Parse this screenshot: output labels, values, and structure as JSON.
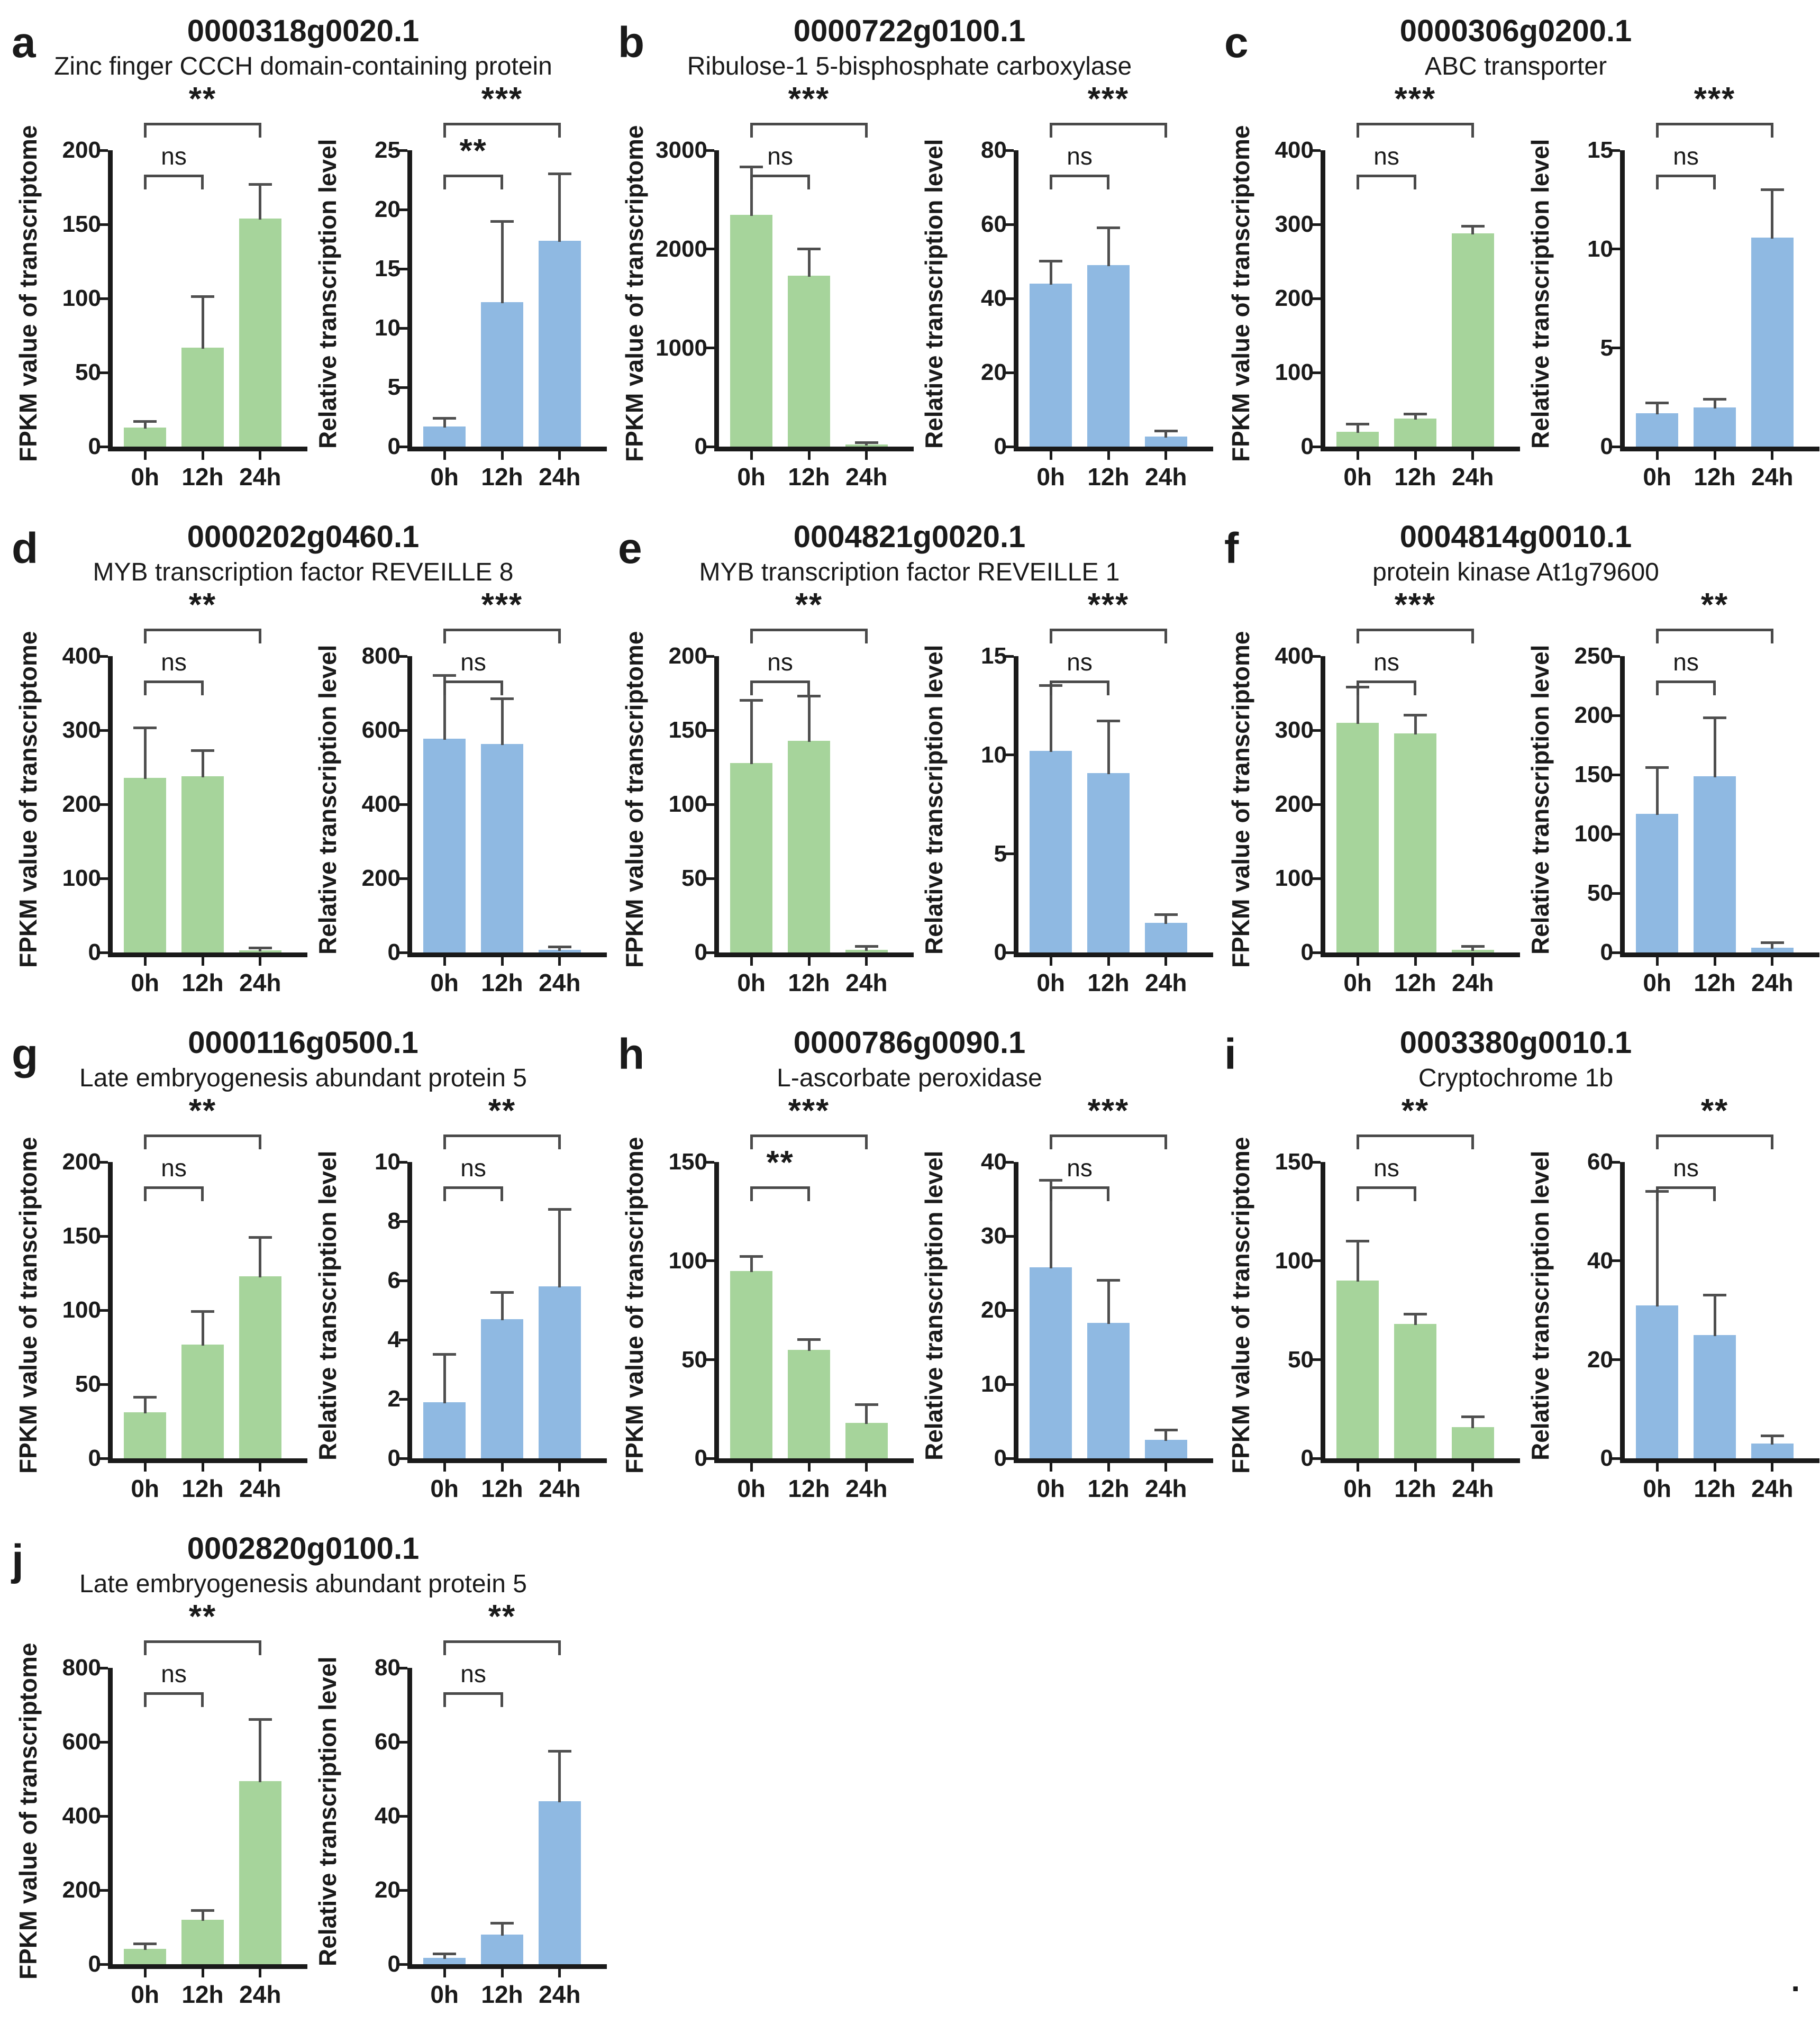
{
  "figure": {
    "trailing_period": ".",
    "x_categories": [
      "0h",
      "12h",
      "24h"
    ],
    "ylabel_fpkm": "FPKM value of transcriptome",
    "ylabel_relative": "Relative transcription level",
    "colors": {
      "green": "#a6d49b",
      "blue": "#8fb9e2",
      "error_bar": "#4f4f4f",
      "axis": "#1a1a1a",
      "bracket": "#4a4a4a"
    }
  },
  "chart_data": [
    {
      "panel": "a",
      "gene_id": "0000318g0020.1",
      "gene_name": "Zinc finger CCCH domain-containing protein",
      "charts": [
        {
          "type": "bar",
          "color": "green",
          "ylabel": "FPKM value of transcriptome",
          "ylim": [
            0,
            200
          ],
          "yticks": [
            0,
            50,
            100,
            150,
            200
          ],
          "categories": [
            "0h",
            "12h",
            "24h"
          ],
          "values": [
            13,
            67,
            154
          ],
          "errors": [
            4,
            34,
            23
          ],
          "sig": {
            "h0_vs_h12": "ns",
            "h0_vs_h24": "**"
          }
        },
        {
          "type": "bar",
          "color": "blue",
          "ylabel": "Relative transcription level",
          "ylim": [
            0,
            25
          ],
          "yticks": [
            0,
            5,
            10,
            15,
            20,
            25
          ],
          "categories": [
            "0h",
            "12h",
            "24h"
          ],
          "values": [
            1.7,
            12.2,
            17.4
          ],
          "errors": [
            0.7,
            6.8,
            5.6
          ],
          "sig": {
            "h0_vs_h12": "**",
            "h0_vs_h24": "***"
          }
        }
      ]
    },
    {
      "panel": "b",
      "gene_id": "0000722g0100.1",
      "gene_name": "Ribulose-1 5-bisphosphate carboxylase",
      "charts": [
        {
          "type": "bar",
          "color": "green",
          "ylabel": "FPKM value of transcriptome",
          "ylim": [
            0,
            3000
          ],
          "yticks": [
            0,
            1000,
            2000,
            3000
          ],
          "categories": [
            "0h",
            "12h",
            "24h"
          ],
          "values": [
            2350,
            1730,
            25
          ],
          "errors": [
            480,
            270,
            15
          ],
          "sig": {
            "h0_vs_h12": "ns",
            "h0_vs_h24": "***"
          }
        },
        {
          "type": "bar",
          "color": "blue",
          "ylabel": "Relative transcription level",
          "ylim": [
            0,
            80
          ],
          "yticks": [
            0,
            20,
            40,
            60,
            80
          ],
          "categories": [
            "0h",
            "12h",
            "24h"
          ],
          "values": [
            44,
            49,
            2.8
          ],
          "errors": [
            6,
            10,
            1.4
          ],
          "sig": {
            "h0_vs_h12": "ns",
            "h0_vs_h24": "***"
          }
        }
      ]
    },
    {
      "panel": "c",
      "gene_id": "0000306g0200.1",
      "gene_name": "ABC transporter",
      "charts": [
        {
          "type": "bar",
          "color": "green",
          "ylabel": "FPKM value of transcriptome",
          "ylim": [
            0,
            400
          ],
          "yticks": [
            0,
            100,
            200,
            300,
            400
          ],
          "categories": [
            "0h",
            "12h",
            "24h"
          ],
          "values": [
            20,
            38,
            288
          ],
          "errors": [
            10,
            6,
            9
          ],
          "sig": {
            "h0_vs_h12": "ns",
            "h0_vs_h24": "***"
          }
        },
        {
          "type": "bar",
          "color": "blue",
          "ylabel": "Relative transcription level",
          "ylim": [
            0,
            15
          ],
          "yticks": [
            0,
            5,
            10,
            15
          ],
          "categories": [
            "0h",
            "12h",
            "24h"
          ],
          "values": [
            1.7,
            2.0,
            10.6
          ],
          "errors": [
            0.5,
            0.4,
            2.4
          ],
          "sig": {
            "h0_vs_h12": "ns",
            "h0_vs_h24": "***"
          }
        }
      ]
    },
    {
      "panel": "d",
      "gene_id": "0000202g0460.1",
      "gene_name": "MYB transcription factor REVEILLE 8",
      "charts": [
        {
          "type": "bar",
          "color": "green",
          "ylabel": "FPKM value of transcriptome",
          "ylim": [
            0,
            400
          ],
          "yticks": [
            0,
            100,
            200,
            300,
            400
          ],
          "categories": [
            "0h",
            "12h",
            "24h"
          ],
          "values": [
            236,
            238,
            3
          ],
          "errors": [
            67,
            34,
            3
          ],
          "sig": {
            "h0_vs_h12": "ns",
            "h0_vs_h24": "**"
          }
        },
        {
          "type": "bar",
          "color": "blue",
          "ylabel": "Relative transcription level",
          "ylim": [
            0,
            800
          ],
          "yticks": [
            0,
            200,
            400,
            600,
            800
          ],
          "categories": [
            "0h",
            "12h",
            "24h"
          ],
          "values": [
            578,
            563,
            8
          ],
          "errors": [
            170,
            122,
            7
          ],
          "sig": {
            "h0_vs_h12": "ns",
            "h0_vs_h24": "***"
          }
        }
      ]
    },
    {
      "panel": "e",
      "gene_id": "0004821g0020.1",
      "gene_name": "MYB transcription factor REVEILLE 1",
      "charts": [
        {
          "type": "bar",
          "color": "green",
          "ylabel": "FPKM value of transcriptome",
          "ylim": [
            0,
            200
          ],
          "yticks": [
            0,
            50,
            100,
            150,
            200
          ],
          "categories": [
            "0h",
            "12h",
            "24h"
          ],
          "values": [
            128,
            143,
            2
          ],
          "errors": [
            42,
            30,
            2
          ],
          "sig": {
            "h0_vs_h12": "ns",
            "h0_vs_h24": "**"
          }
        },
        {
          "type": "bar",
          "color": "blue",
          "ylabel": "Relative transcription level",
          "ylim": [
            0,
            15
          ],
          "yticks": [
            0,
            5,
            10,
            15
          ],
          "categories": [
            "0h",
            "12h",
            "24h"
          ],
          "values": [
            10.2,
            9.1,
            1.5
          ],
          "errors": [
            3.3,
            2.6,
            0.4
          ],
          "sig": {
            "h0_vs_h12": "ns",
            "h0_vs_h24": "***"
          }
        }
      ]
    },
    {
      "panel": "f",
      "gene_id": "0004814g0010.1",
      "gene_name": "protein kinase At1g79600",
      "charts": [
        {
          "type": "bar",
          "color": "green",
          "ylabel": "FPKM value of transcriptome",
          "ylim": [
            0,
            400
          ],
          "yticks": [
            0,
            100,
            200,
            300,
            400
          ],
          "categories": [
            "0h",
            "12h",
            "24h"
          ],
          "values": [
            310,
            296,
            4
          ],
          "errors": [
            48,
            24,
            4
          ],
          "sig": {
            "h0_vs_h12": "ns",
            "h0_vs_h24": "***"
          }
        },
        {
          "type": "bar",
          "color": "blue",
          "ylabel": "Relative transcription level",
          "ylim": [
            0,
            250
          ],
          "yticks": [
            0,
            50,
            100,
            150,
            200,
            250
          ],
          "categories": [
            "0h",
            "12h",
            "24h"
          ],
          "values": [
            117,
            149,
            4
          ],
          "errors": [
            39,
            49,
            4
          ],
          "sig": {
            "h0_vs_h12": "ns",
            "h0_vs_h24": "**"
          }
        }
      ]
    },
    {
      "panel": "g",
      "gene_id": "0000116g0500.1",
      "gene_name": "Late embryogenesis abundant protein 5",
      "charts": [
        {
          "type": "bar",
          "color": "green",
          "ylabel": "FPKM value of transcriptome",
          "ylim": [
            0,
            200
          ],
          "yticks": [
            0,
            50,
            100,
            150,
            200
          ],
          "categories": [
            "0h",
            "12h",
            "24h"
          ],
          "values": [
            31,
            77,
            123
          ],
          "errors": [
            10,
            22,
            26
          ],
          "sig": {
            "h0_vs_h12": "ns",
            "h0_vs_h24": "**"
          }
        },
        {
          "type": "bar",
          "color": "blue",
          "ylabel": "Relative transcription level",
          "ylim": [
            0,
            10
          ],
          "yticks": [
            0,
            2,
            4,
            6,
            8,
            10
          ],
          "categories": [
            "0h",
            "12h",
            "24h"
          ],
          "values": [
            1.9,
            4.7,
            5.8
          ],
          "errors": [
            1.6,
            0.9,
            2.6
          ],
          "sig": {
            "h0_vs_h12": "ns",
            "h0_vs_h24": "**"
          }
        }
      ]
    },
    {
      "panel": "h",
      "gene_id": "0000786g0090.1",
      "gene_name": "L-ascorbate peroxidase",
      "charts": [
        {
          "type": "bar",
          "color": "green",
          "ylabel": "FPKM value of transcriptome",
          "ylim": [
            0,
            150
          ],
          "yticks": [
            0,
            50,
            100,
            150
          ],
          "categories": [
            "0h",
            "12h",
            "24h"
          ],
          "values": [
            95,
            55,
            18
          ],
          "errors": [
            7,
            5,
            9
          ],
          "sig": {
            "h0_vs_h12": "**",
            "h0_vs_h24": "***"
          }
        },
        {
          "type": "bar",
          "color": "blue",
          "ylabel": "Relative transcription level",
          "ylim": [
            0,
            40
          ],
          "yticks": [
            0,
            10,
            20,
            30,
            40
          ],
          "categories": [
            "0h",
            "12h",
            "24h"
          ],
          "values": [
            25.8,
            18.3,
            2.5
          ],
          "errors": [
            11.7,
            5.7,
            1.3
          ],
          "sig": {
            "h0_vs_h12": "ns",
            "h0_vs_h24": "***"
          }
        }
      ]
    },
    {
      "panel": "i",
      "gene_id": "0003380g0010.1",
      "gene_name": "Cryptochrome 1b",
      "charts": [
        {
          "type": "bar",
          "color": "green",
          "ylabel": "FPKM value of transcriptome",
          "ylim": [
            0,
            150
          ],
          "yticks": [
            0,
            50,
            100,
            150
          ],
          "categories": [
            "0h",
            "12h",
            "24h"
          ],
          "values": [
            90,
            68,
            16
          ],
          "errors": [
            20,
            5,
            5
          ],
          "sig": {
            "h0_vs_h12": "ns",
            "h0_vs_h24": "**"
          }
        },
        {
          "type": "bar",
          "color": "blue",
          "ylabel": "Relative transcription level",
          "ylim": [
            0,
            60
          ],
          "yticks": [
            0,
            20,
            40,
            60
          ],
          "categories": [
            "0h",
            "12h",
            "24h"
          ],
          "values": [
            31,
            25,
            3
          ],
          "errors": [
            23,
            8,
            1.5
          ],
          "sig": {
            "h0_vs_h12": "ns",
            "h0_vs_h24": "**"
          }
        }
      ]
    },
    {
      "panel": "j",
      "gene_id": "0002820g0100.1",
      "gene_name": "Late embryogenesis abundant protein 5",
      "charts": [
        {
          "type": "bar",
          "color": "green",
          "ylabel": "FPKM value of transcriptome",
          "ylim": [
            0,
            800
          ],
          "yticks": [
            0,
            200,
            400,
            600,
            800
          ],
          "categories": [
            "0h",
            "12h",
            "24h"
          ],
          "values": [
            42,
            120,
            495
          ],
          "errors": [
            13,
            25,
            165
          ],
          "sig": {
            "h0_vs_h12": "ns",
            "h0_vs_h24": "**"
          }
        },
        {
          "type": "bar",
          "color": "blue",
          "ylabel": "Relative transcription level",
          "ylim": [
            0,
            80
          ],
          "yticks": [
            0,
            20,
            40,
            60,
            80
          ],
          "categories": [
            "0h",
            "12h",
            "24h"
          ],
          "values": [
            1.8,
            8,
            44
          ],
          "errors": [
            1,
            3,
            13.5
          ],
          "sig": {
            "h0_vs_h12": "ns",
            "h0_vs_h24": "**"
          }
        }
      ]
    }
  ]
}
